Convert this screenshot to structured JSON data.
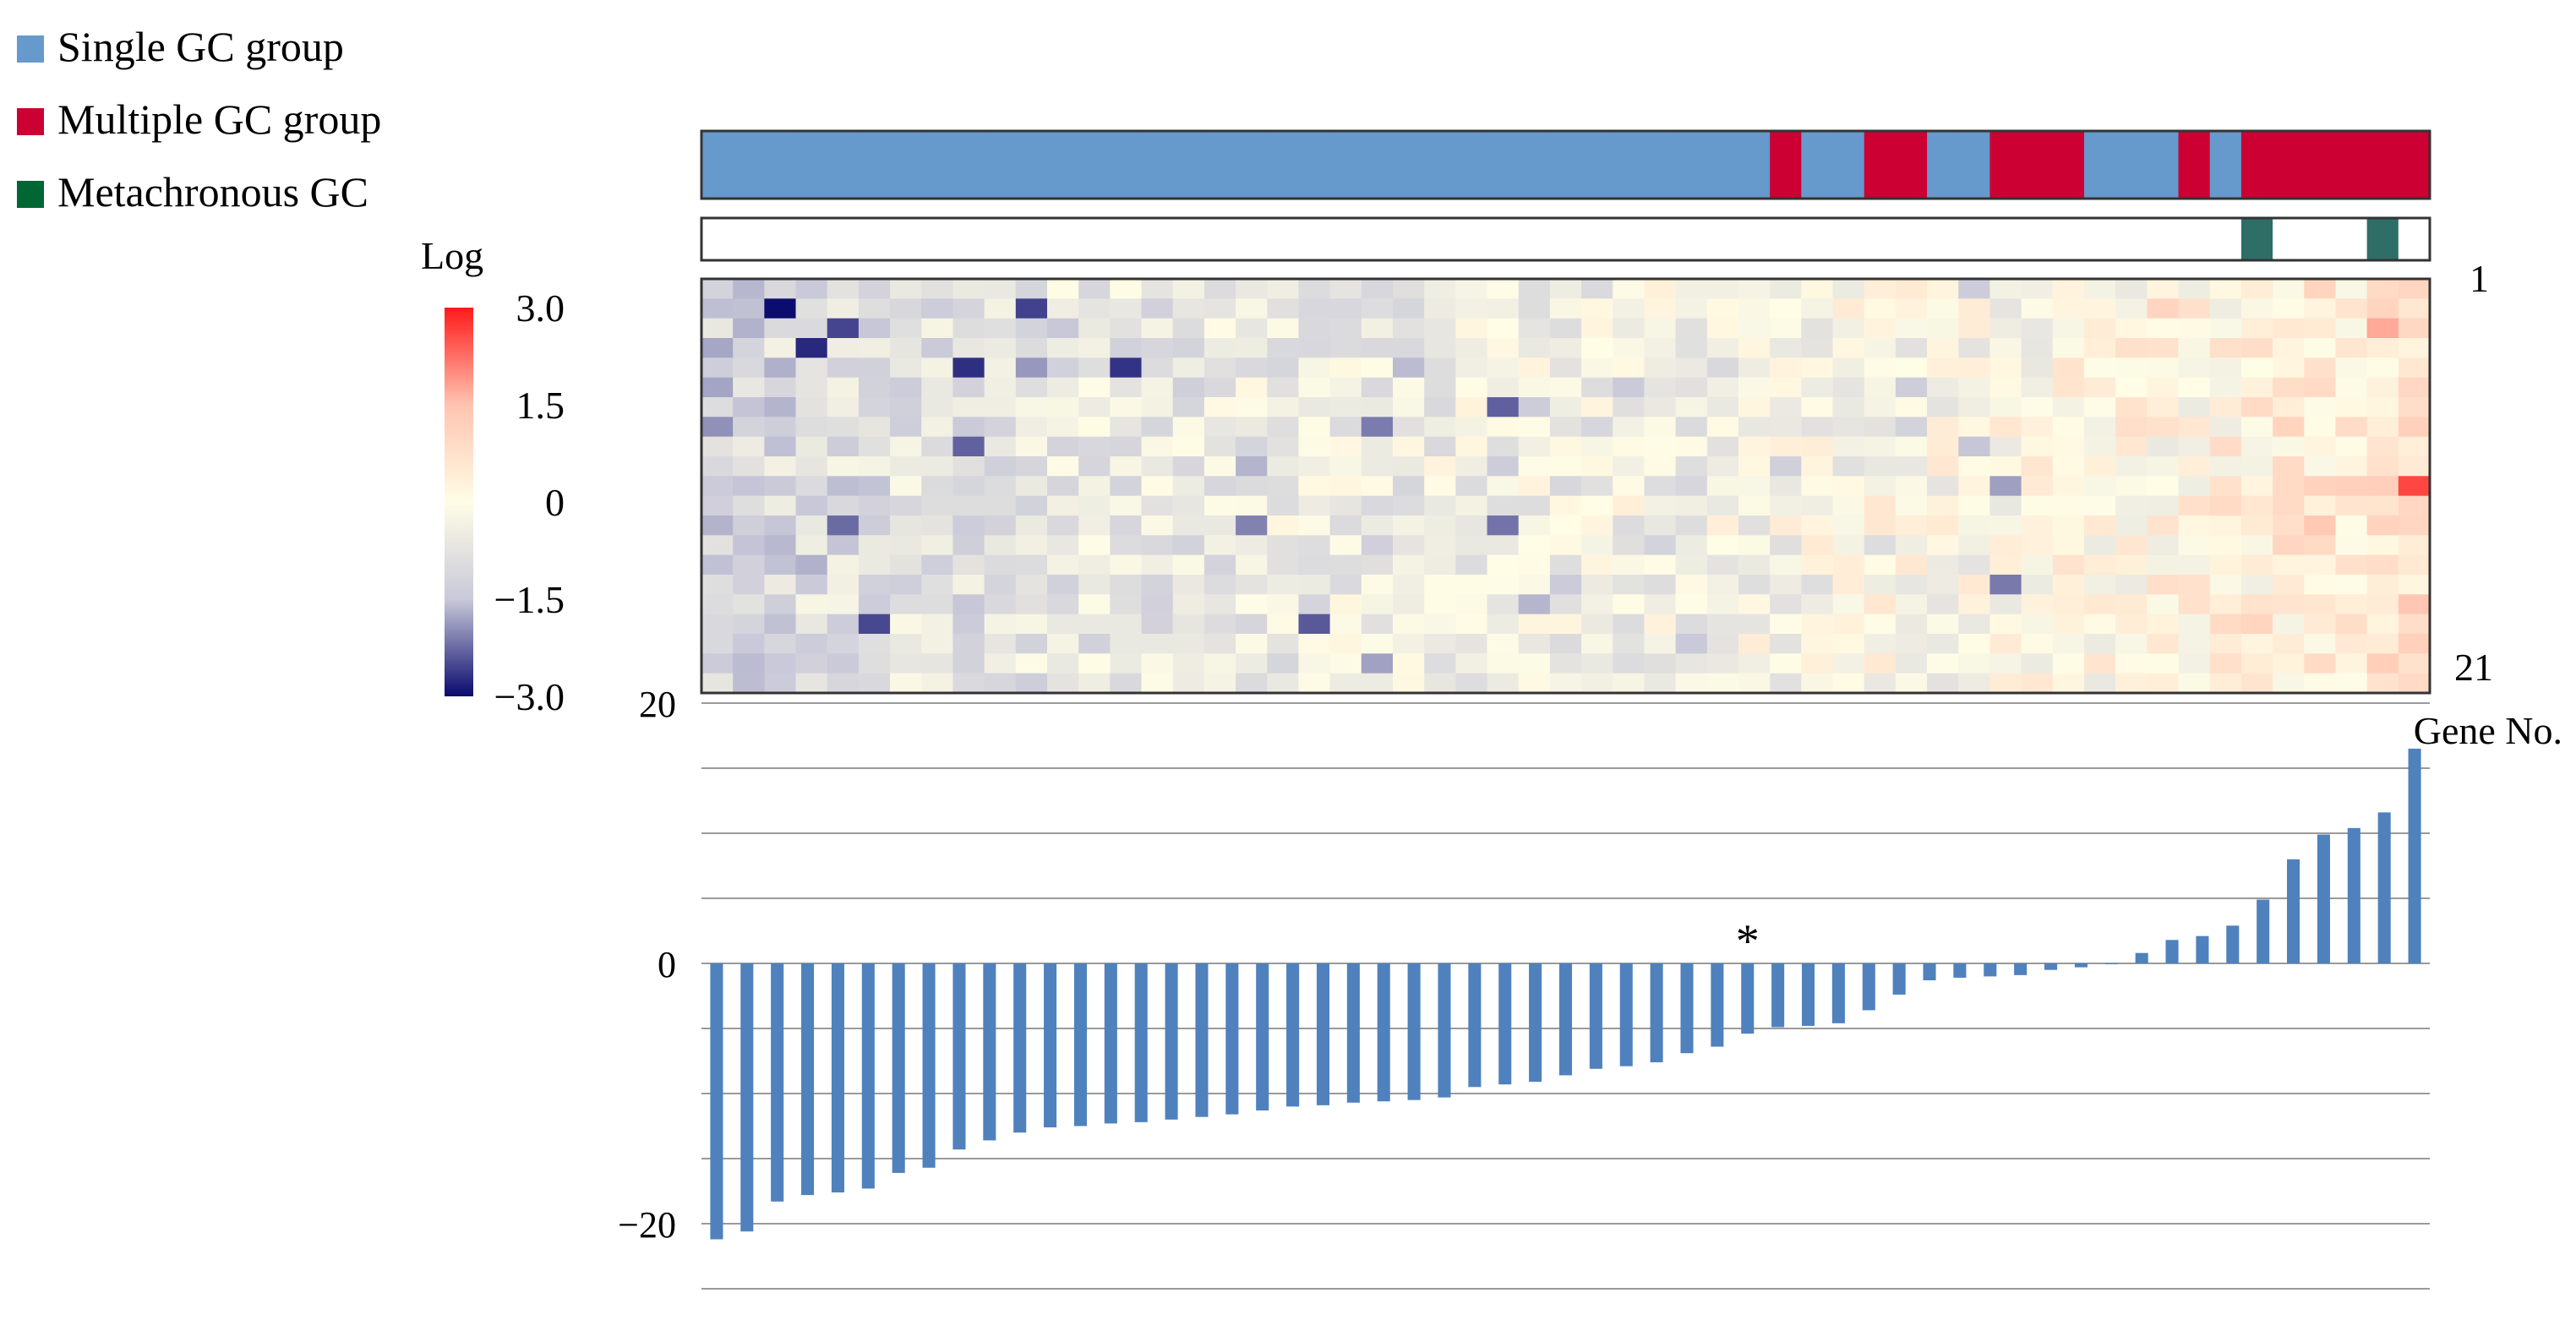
{
  "legend": {
    "items": [
      {
        "label": "Single GC group",
        "color": "#6699CC"
      },
      {
        "label": "Multiple GC group",
        "color": "#CC0033"
      },
      {
        "label": "Metachronous GC",
        "color": "#006633"
      }
    ]
  },
  "annotation_colors": {
    "single": "#6699CC",
    "multiple": "#CC0033",
    "metachronous": "#2E6E67",
    "none": "#FFFFFF"
  },
  "chart_data": [
    {
      "type": "heatmap",
      "title": "",
      "colorbar": {
        "title": "Log",
        "min": -3.0,
        "max": 3.0,
        "ticks": [
          "3.0",
          "1.5",
          "0",
          "−1.5",
          "−3.0"
        ],
        "tick_values": [
          3.0,
          1.5,
          0,
          -1.5,
          -3.0
        ],
        "colors": [
          "#0A0A6E",
          "#C9C9D9",
          "#FFFDE6",
          "#FFC4B0",
          "#FF1A1A"
        ]
      },
      "row_labels": {
        "first": "1",
        "last": "21"
      },
      "n_rows": 21,
      "n_cols": 55,
      "group_track": [
        "S",
        "S",
        "S",
        "S",
        "S",
        "S",
        "S",
        "S",
        "S",
        "S",
        "S",
        "S",
        "S",
        "S",
        "S",
        "S",
        "S",
        "S",
        "S",
        "S",
        "S",
        "S",
        "S",
        "S",
        "S",
        "S",
        "S",
        "S",
        "S",
        "S",
        "S",
        "S",
        "S",
        "S",
        "M",
        "S",
        "S",
        "M",
        "M",
        "S",
        "S",
        "M",
        "M",
        "M",
        "S",
        "S",
        "S",
        "M",
        "S",
        "M",
        "M",
        "M",
        "M",
        "M",
        "M"
      ],
      "metachronous_track": [
        0,
        0,
        0,
        0,
        0,
        0,
        0,
        0,
        0,
        0,
        0,
        0,
        0,
        0,
        0,
        0,
        0,
        0,
        0,
        0,
        0,
        0,
        0,
        0,
        0,
        0,
        0,
        0,
        0,
        0,
        0,
        0,
        0,
        0,
        0,
        0,
        0,
        0,
        0,
        0,
        0,
        0,
        0,
        0,
        0,
        0,
        0,
        0,
        0,
        1,
        0,
        0,
        0,
        1,
        0
      ],
      "column_means": [
        -1.2,
        -1.1,
        -1.0,
        -0.9,
        -0.9,
        -0.9,
        -0.8,
        -0.8,
        -0.8,
        -0.7,
        -0.7,
        -0.6,
        -0.6,
        -0.6,
        -0.6,
        -0.6,
        -0.5,
        -0.5,
        -0.5,
        -0.5,
        -0.5,
        -0.5,
        -0.5,
        -0.4,
        -0.4,
        -0.4,
        -0.4,
        -0.4,
        -0.4,
        -0.3,
        -0.3,
        -0.3,
        -0.3,
        -0.2,
        -0.2,
        -0.2,
        -0.2,
        -0.1,
        -0.1,
        -0.1,
        -0.1,
        -0.1,
        0.0,
        0.0,
        0.0,
        0.1,
        0.1,
        0.1,
        0.2,
        0.3,
        0.4,
        0.5,
        0.5,
        0.6,
        0.8
      ]
    },
    {
      "type": "bar",
      "title": "",
      "xlabel": "Gene No.",
      "ylabel": "",
      "ylim": [
        -25,
        20
      ],
      "yticks": [
        20,
        0,
        -20
      ],
      "ytick_labels": [
        "20",
        "0",
        "−20"
      ],
      "gridlines": [
        20,
        15,
        10,
        5,
        0,
        -5,
        -10,
        -15,
        -20,
        -25
      ],
      "grid": true,
      "bar_color": "#4F81BD",
      "annotation": {
        "text": "*",
        "index": 34
      },
      "values": [
        -21.2,
        -20.6,
        -18.3,
        -17.8,
        -17.6,
        -17.3,
        -16.1,
        -15.7,
        -14.3,
        -13.6,
        -13.0,
        -12.6,
        -12.5,
        -12.3,
        -12.2,
        -12.0,
        -11.8,
        -11.6,
        -11.3,
        -11.0,
        -10.9,
        -10.7,
        -10.6,
        -10.5,
        -10.3,
        -9.5,
        -9.3,
        -9.1,
        -8.6,
        -8.1,
        -7.9,
        -7.6,
        -6.9,
        -6.4,
        -5.4,
        -4.9,
        -4.8,
        -4.6,
        -3.6,
        -2.4,
        -1.3,
        -1.1,
        -1.0,
        -0.9,
        -0.5,
        -0.3,
        0.0,
        0.8,
        1.8,
        2.1,
        2.9,
        4.9,
        8.0,
        9.9,
        10.4,
        11.6,
        16.5
      ]
    }
  ]
}
